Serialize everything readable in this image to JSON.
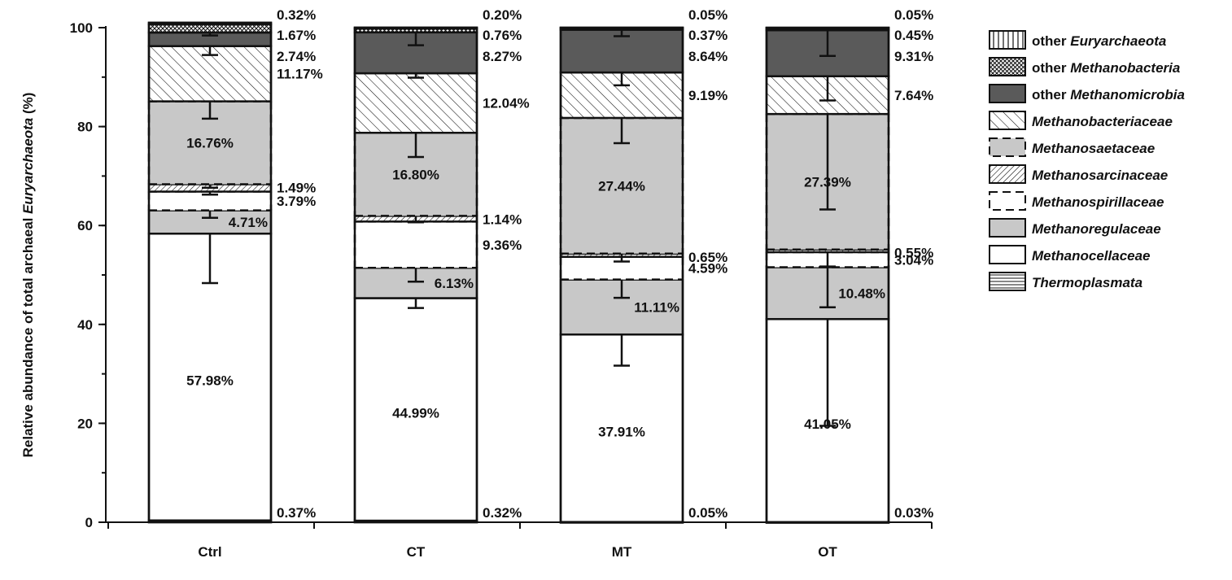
{
  "chart_data": {
    "type": "bar",
    "stacked": true,
    "ylabel_prefix": "Relative abundance of total archaeal ",
    "ylabel_italic": "Euryarchaeota",
    "ylabel_suffix": " (%)",
    "ylim": [
      0,
      100
    ],
    "yticks": [
      0,
      20,
      40,
      60,
      80,
      100
    ],
    "categories": [
      "Ctrl",
      "CT",
      "MT",
      "OT"
    ],
    "series": [
      {
        "key": "thermoplasmata",
        "name": "Thermoplasmata",
        "prefix": "",
        "fill": "hlines",
        "values": [
          0.37,
          0.32,
          0.05,
          0.03
        ],
        "labels": [
          "0.37%",
          "0.32%",
          "0.05%",
          "0.03%"
        ]
      },
      {
        "key": "methanocellaceae",
        "name": "Methanocellaceae",
        "prefix": "",
        "fill": "white",
        "values": [
          57.98,
          44.99,
          37.91,
          41.05
        ],
        "labels": [
          "57.98%",
          "44.99%",
          "37.91%",
          "41.05%"
        ]
      },
      {
        "key": "methanoregulaceae",
        "name": "Methanoregulaceae",
        "prefix": "",
        "fill": "gray",
        "values": [
          4.71,
          6.13,
          11.11,
          10.48
        ],
        "labels": [
          "4.71%",
          "6.13%",
          "11.11%",
          "10.48%"
        ]
      },
      {
        "key": "methanospirillaceae",
        "name": "Methanospirillaceae",
        "prefix": "",
        "fill": "white-dashed",
        "values": [
          3.79,
          9.36,
          4.59,
          3.04
        ],
        "labels": [
          "3.79%",
          "9.36%",
          "4.59%",
          "3.04%"
        ]
      },
      {
        "key": "methanosarcinaceae",
        "name": "Methanosarcinaceae",
        "prefix": "",
        "fill": "fine-diag",
        "values": [
          1.49,
          1.14,
          0.65,
          0.55
        ],
        "labels": [
          "1.49%",
          "1.14%",
          "0.65%",
          "0.55%"
        ]
      },
      {
        "key": "methanosaetaceae",
        "name": "Methanosaetaceae",
        "prefix": "",
        "fill": "gray-dashed",
        "values": [
          16.76,
          16.8,
          27.44,
          27.39
        ],
        "labels": [
          "16.76%",
          "16.80%",
          "27.44%",
          "27.39%"
        ]
      },
      {
        "key": "methanobacteriaceae",
        "name": "Methanobacteriaceae",
        "prefix": "",
        "fill": "back-diag",
        "values": [
          11.17,
          12.04,
          9.19,
          7.64
        ],
        "labels": [
          "11.17%",
          "12.04%",
          "9.19%",
          "7.64%"
        ]
      },
      {
        "key": "other_methanomicrobia",
        "name": "Methanomicrobia",
        "prefix": "other ",
        "fill": "dark",
        "values": [
          2.74,
          8.27,
          8.64,
          9.31
        ],
        "labels": [
          "2.74%",
          "8.27%",
          "8.64%",
          "9.31%"
        ]
      },
      {
        "key": "other_methanobacteria",
        "name": "Methanobacteria",
        "prefix": "other ",
        "fill": "crosshatch",
        "values": [
          1.67,
          0.76,
          0.37,
          0.45
        ],
        "labels": [
          "1.67%",
          "0.76%",
          "0.37%",
          "0.45%"
        ]
      },
      {
        "key": "other_euryarchaeota",
        "name": "Euryarchaeota",
        "prefix": "other ",
        "fill": "vlines",
        "values": [
          0.32,
          0.2,
          0.05,
          0.05
        ],
        "labels": [
          "0.32%",
          "0.20%",
          "0.05%",
          "0.05%"
        ]
      }
    ],
    "errorbars": [
      [
        {
          "series": "methanocellaceae",
          "err": 10.0
        },
        {
          "series": "methanoregulaceae",
          "err": 1.5
        },
        {
          "series": "methanospirillaceae",
          "err": 0.6
        },
        {
          "series": "methanosarcinaceae",
          "err": 0.7
        },
        {
          "series": "methanosaetaceae",
          "err": 3.5
        },
        {
          "series": "methanobacteriaceae",
          "err": 1.8
        },
        {
          "series": "other_methanomicrobia",
          "err": 0.6
        }
      ],
      [
        {
          "series": "methanocellaceae",
          "err": 2.0
        },
        {
          "series": "methanoregulaceae",
          "err": 2.8
        },
        {
          "series": "methanospirillaceae",
          "err": 0.0
        },
        {
          "series": "methanosarcinaceae",
          "err": 1.3
        },
        {
          "series": "methanosaetaceae",
          "err": 4.9
        },
        {
          "series": "methanobacteriaceae",
          "err": 0.9
        },
        {
          "series": "other_methanomicrobia",
          "err": 2.6
        }
      ],
      [
        {
          "series": "methanocellaceae",
          "err": 6.3
        },
        {
          "series": "methanoregulaceae",
          "err": 3.7
        },
        {
          "series": "methanospirillaceae",
          "err": 0.0
        },
        {
          "series": "methanosarcinaceae",
          "err": 1.6
        },
        {
          "series": "methanosaetaceae",
          "err": 5.1
        },
        {
          "series": "methanobacteriaceae",
          "err": 2.6
        },
        {
          "series": "other_methanomicrobia",
          "err": 1.3
        }
      ],
      [
        {
          "series": "methanocellaceae",
          "err": 21.6
        },
        {
          "series": "methanoregulaceae",
          "err": 8.1
        },
        {
          "series": "methanospirillaceae",
          "err": 2.9
        },
        {
          "series": "methanosarcinaceae",
          "err": 0.0
        },
        {
          "series": "methanosaetaceae",
          "err": 19.3
        },
        {
          "series": "methanobacteriaceae",
          "err": 4.9
        },
        {
          "series": "other_methanomicrobia",
          "err": 5.2
        }
      ]
    ]
  }
}
